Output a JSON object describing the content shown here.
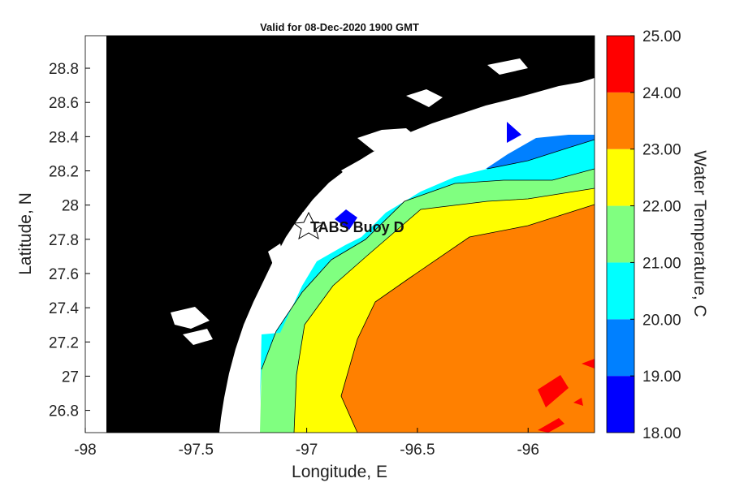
{
  "chart_data": {
    "type": "heatmap",
    "title": "Valid for 08-Dec-2020 1900 GMT",
    "xlabel": "Longitude, E",
    "ylabel": "Latitude, N",
    "colorbar_label": "Water Temperature, C",
    "xlim": [
      -98.0,
      -95.7
    ],
    "ylim": [
      26.67,
      28.99
    ],
    "x_ticks": [
      -98,
      -97.5,
      -97,
      -96.5,
      -96
    ],
    "x_tick_labels": [
      "-98",
      "-97.5",
      "-97",
      "-96.5",
      "-96"
    ],
    "y_ticks": [
      26.8,
      27.0,
      27.2,
      27.4,
      27.6,
      27.8,
      28.0,
      28.2,
      28.4,
      28.6,
      28.8
    ],
    "y_tick_labels": [
      "26.8",
      "27",
      "27.2",
      "27.4",
      "27.6",
      "27.8",
      "28",
      "28.2",
      "28.4",
      "28.6",
      "28.8"
    ],
    "colorbar_ticks": [
      "18.00",
      "19.00",
      "20.00",
      "21.00",
      "22.00",
      "23.00",
      "24.00",
      "25.00"
    ],
    "colorbar_bands": [
      {
        "min": 18,
        "max": 19,
        "color": "#0000ff"
      },
      {
        "min": 19,
        "max": 20,
        "color": "#0080ff"
      },
      {
        "min": 20,
        "max": 21,
        "color": "#00ffff"
      },
      {
        "min": 21,
        "max": 22,
        "color": "#80ff80"
      },
      {
        "min": 22,
        "max": 23,
        "color": "#ffff00"
      },
      {
        "min": 23,
        "max": 24,
        "color": "#ff8000"
      },
      {
        "min": 24,
        "max": 25,
        "color": "#ff0000"
      }
    ],
    "land_color": "#000000",
    "station": {
      "name": "TABS Buoy D",
      "lon": -96.84,
      "lat": 27.94
    }
  }
}
